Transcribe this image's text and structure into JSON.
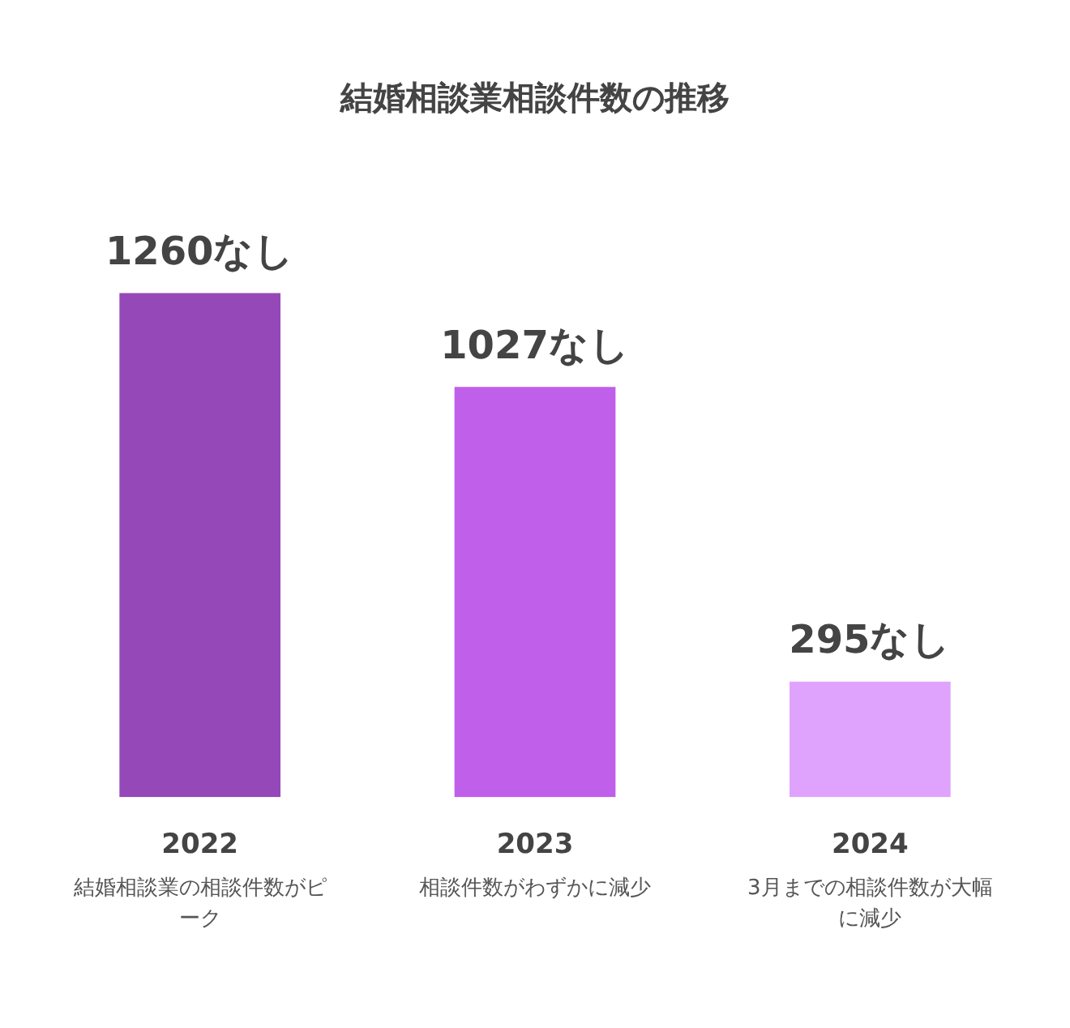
{
  "chart_data": {
    "type": "bar",
    "title": "結婚相談業相談件数の推移",
    "categories": [
      "2022",
      "2023",
      "2024"
    ],
    "values": [
      1260,
      1027,
      295
    ],
    "value_labels": [
      "1260なし",
      "1027なし",
      "295なし"
    ],
    "colors": [
      "#9549b8",
      "#bf5fea",
      "#e0a3fd"
    ],
    "annotations": [
      "結婚相談業の相談件数がピーク",
      "相談件数がわずかに減少",
      "3月までの相談件数が大幅に減少"
    ]
  }
}
